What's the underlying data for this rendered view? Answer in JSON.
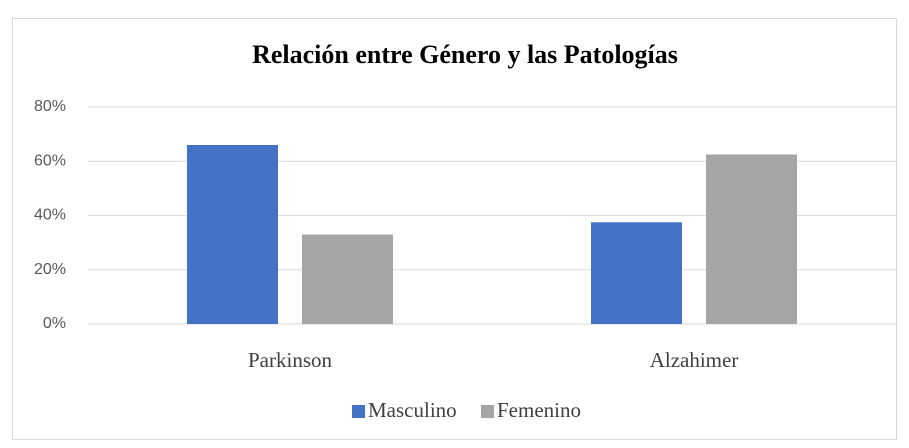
{
  "chart_data": {
    "type": "bar",
    "title": "Relación entre Género y las Patologías",
    "categories": [
      "Parkinson",
      "Alzahimer"
    ],
    "series": [
      {
        "name": "Masculino",
        "color": "#4472c4",
        "values": [
          66,
          37.5
        ]
      },
      {
        "name": "Femenino",
        "color": "#a5a5a5",
        "values": [
          33,
          62.5
        ]
      }
    ],
    "ylim": [
      0,
      80
    ],
    "yticks": [
      {
        "value": 0,
        "label": "0%"
      },
      {
        "value": 20,
        "label": "20%"
      },
      {
        "value": 40,
        "label": "40%"
      },
      {
        "value": 60,
        "label": "60%"
      },
      {
        "value": 80,
        "label": "80%"
      }
    ],
    "grid": true,
    "legend": "bottom"
  }
}
